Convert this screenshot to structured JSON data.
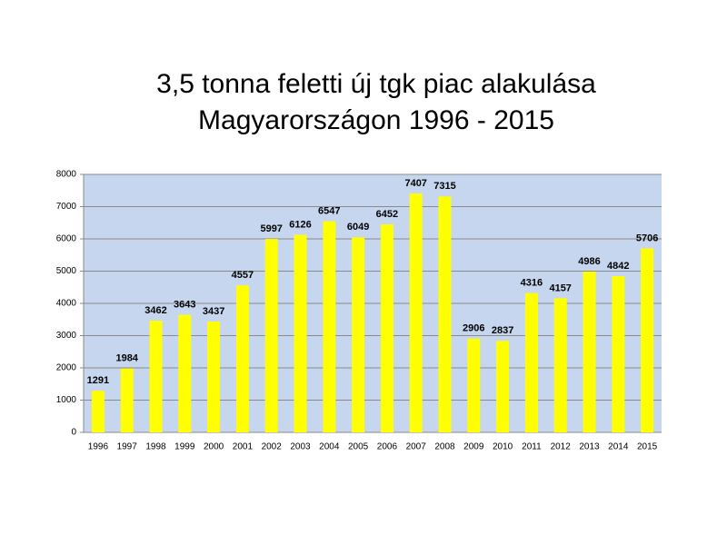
{
  "chart_data": {
    "type": "bar",
    "title": [
      "3,5 tonna feletti új tgk piac alakulása",
      "Magyarországon 1996 - 2015"
    ],
    "categories": [
      "1996",
      "1997",
      "1998",
      "1999",
      "2000",
      "2001",
      "2002",
      "2003",
      "2004",
      "2005",
      "2006",
      "2007",
      "2008",
      "2009",
      "2010",
      "2011",
      "2012",
      "2013",
      "2014",
      "2015"
    ],
    "values": [
      1291,
      1984,
      3462,
      3643,
      3437,
      4557,
      5997,
      6126,
      6547,
      6049,
      6452,
      7407,
      7315,
      2906,
      2837,
      4316,
      4157,
      4986,
      4842,
      5706
    ],
    "color": "#ffff00",
    "ylim": [
      0,
      8000
    ],
    "yticks": [
      0,
      1000,
      2000,
      3000,
      4000,
      5000,
      6000,
      7000,
      8000
    ],
    "grid": true
  }
}
